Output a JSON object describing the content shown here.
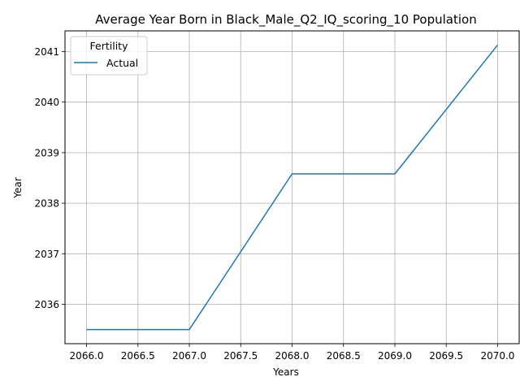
{
  "chart_data": {
    "type": "line",
    "title": "Average Year Born in Black_Male_Q2_IQ_scoring_10 Population",
    "xlabel": "Years",
    "ylabel": "Year",
    "x": [
      2066,
      2067,
      2068,
      2069,
      2070
    ],
    "series": [
      {
        "name": "Actual",
        "color": "#1f77b4",
        "values": [
          2035.5,
          2035.5,
          2038.58,
          2038.58,
          2041.13
        ]
      }
    ],
    "xlim": [
      2065.79,
      2070.21
    ],
    "ylim": [
      2035.22,
      2041.41
    ],
    "xticks": [
      2066.0,
      2066.5,
      2067.0,
      2067.5,
      2068.0,
      2068.5,
      2069.0,
      2069.5,
      2070.0
    ],
    "xtick_labels": [
      "2066.0",
      "2066.5",
      "2067.0",
      "2067.5",
      "2068.0",
      "2068.5",
      "2069.0",
      "2069.5",
      "2070.0"
    ],
    "yticks": [
      2036,
      2037,
      2038,
      2039,
      2040,
      2041
    ],
    "ytick_labels": [
      "2036",
      "2037",
      "2038",
      "2039",
      "2040",
      "2041"
    ],
    "grid": true,
    "legend": {
      "title": "Fertility",
      "placement": "top-left"
    }
  }
}
